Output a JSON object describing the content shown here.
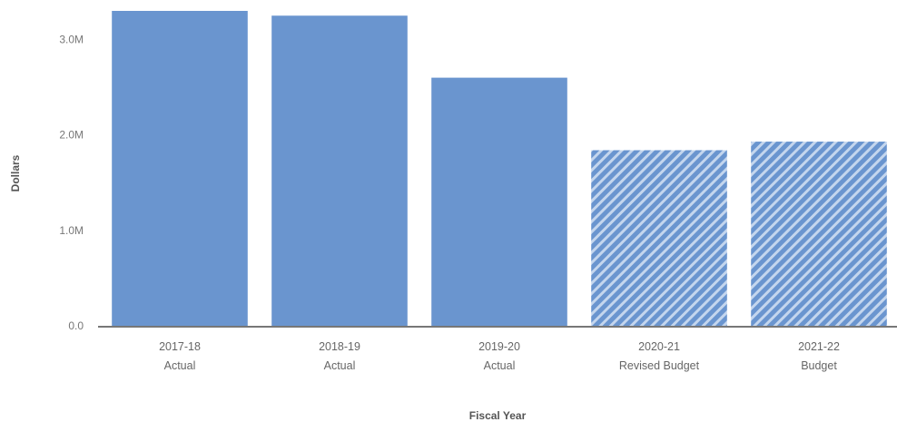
{
  "chart_data": {
    "type": "bar",
    "xlabel": "Fiscal Year",
    "ylabel": "Dollars",
    "ylim": [
      0,
      3300000
    ],
    "yticks": [
      {
        "value": 0,
        "label": "0.0"
      },
      {
        "value": 1000000,
        "label": "1.0M"
      },
      {
        "value": 2000000,
        "label": "2.0M"
      },
      {
        "value": 3000000,
        "label": "3.0M"
      }
    ],
    "grid": false,
    "categories": [
      {
        "year": "2017-18",
        "kind": "Actual"
      },
      {
        "year": "2018-19",
        "kind": "Actual"
      },
      {
        "year": "2019-20",
        "kind": "Actual"
      },
      {
        "year": "2020-21",
        "kind": "Revised Budget"
      },
      {
        "year": "2021-22",
        "kind": "Budget"
      }
    ],
    "values": [
      3300000,
      3250000,
      2600000,
      1840000,
      1930000
    ],
    "bar_fill": [
      "solid",
      "solid",
      "solid",
      "hatched",
      "hatched"
    ],
    "colors": {
      "bar": "#6a95cf",
      "hatch_light": "#c4d6ee",
      "axis": "#777777"
    }
  }
}
